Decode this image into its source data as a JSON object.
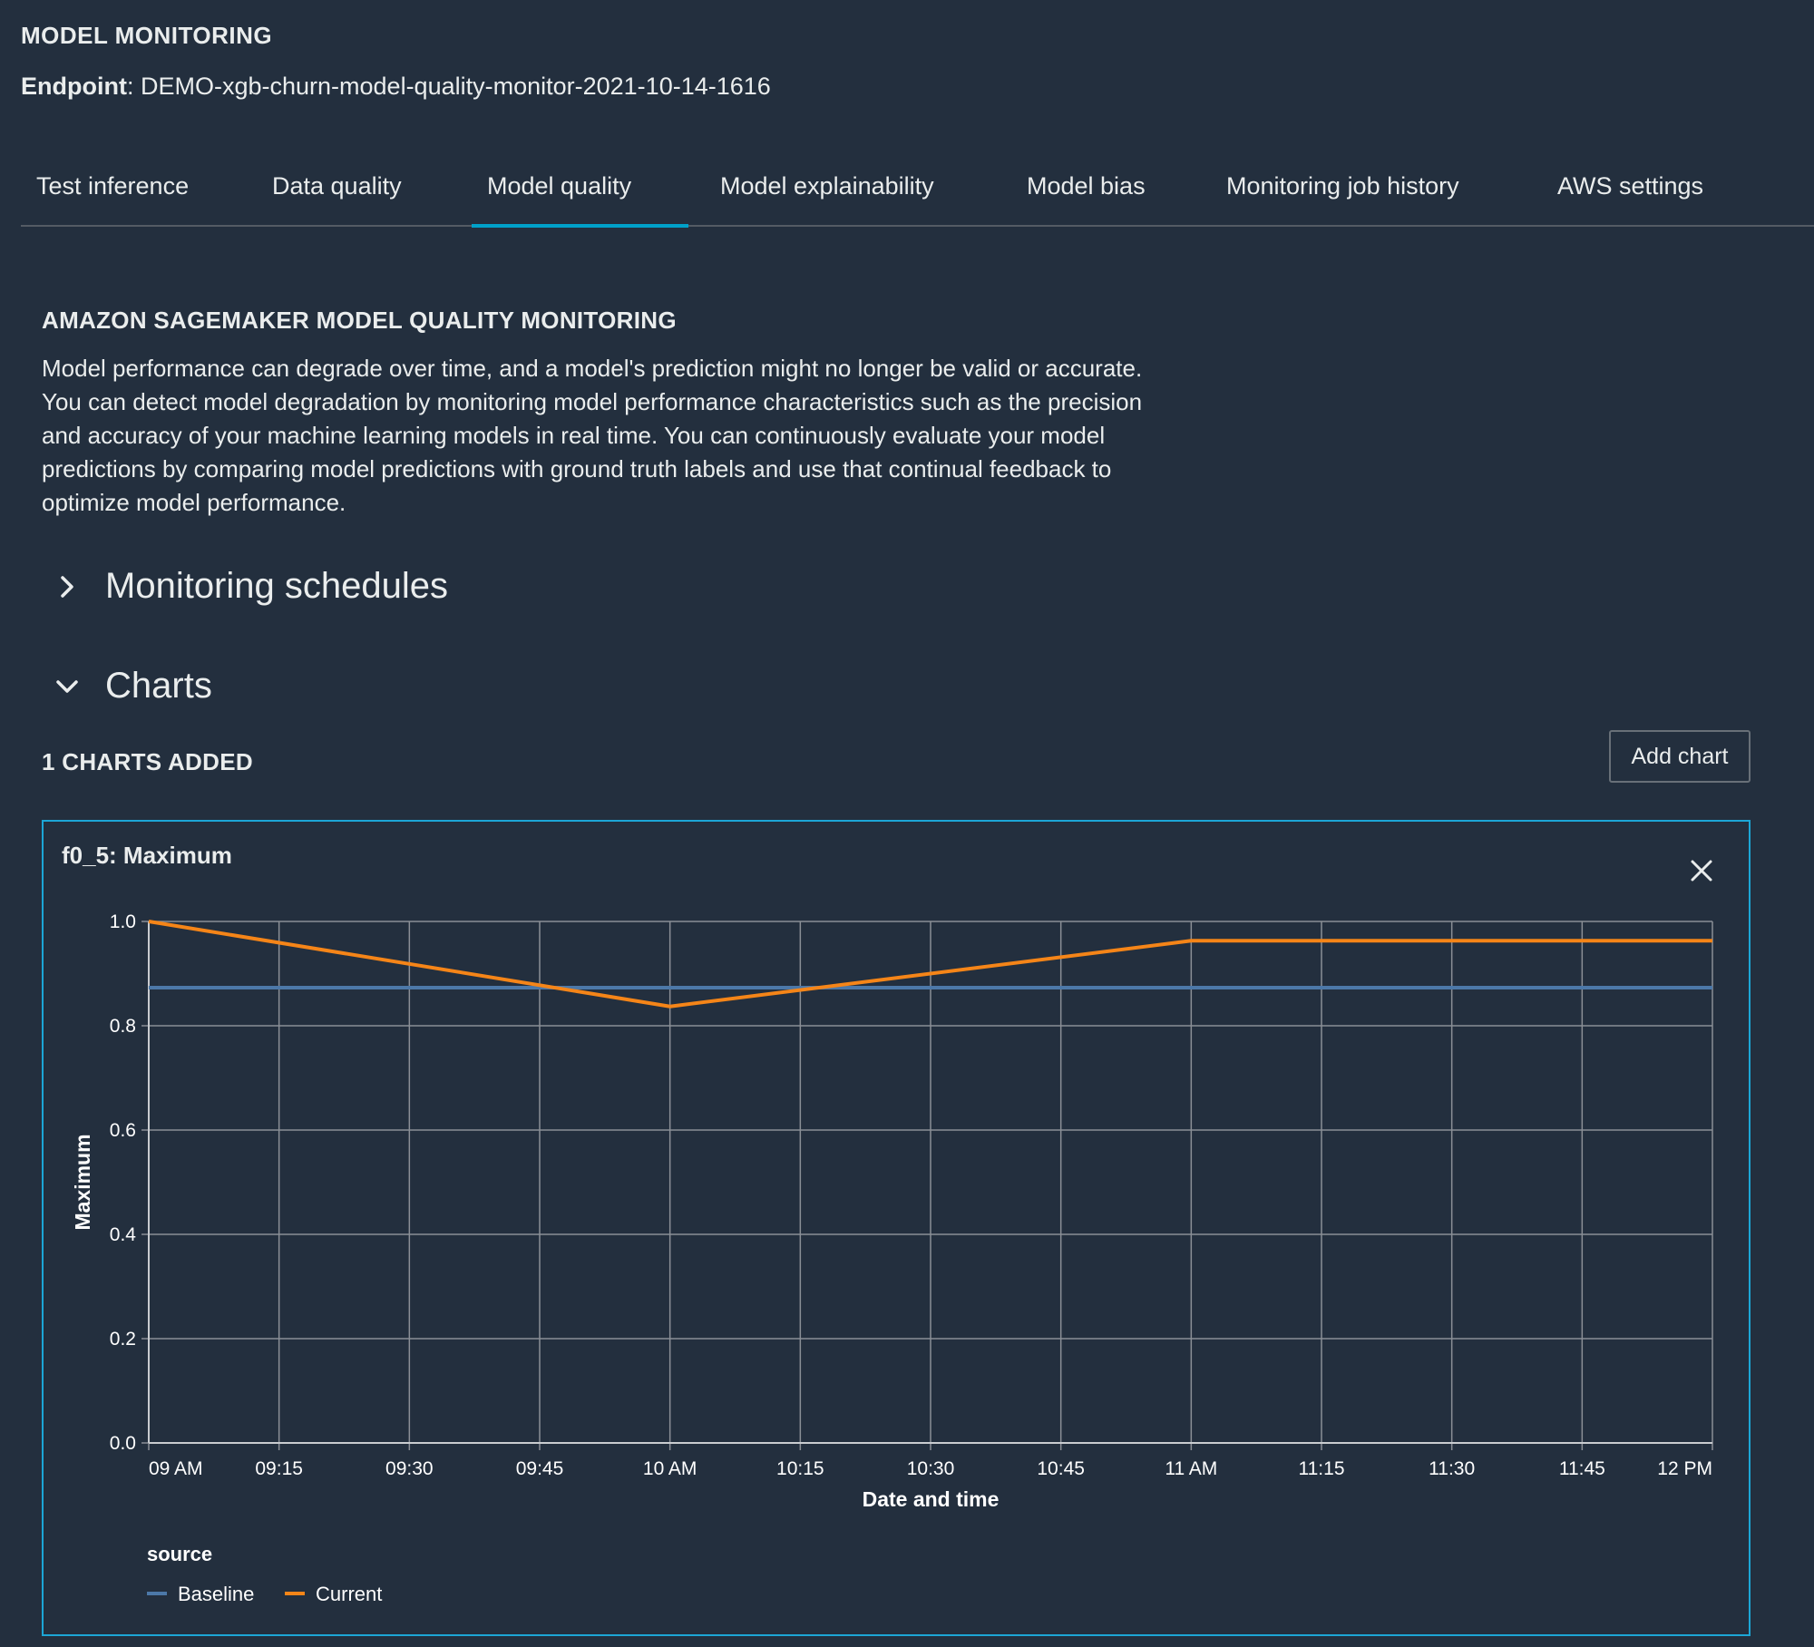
{
  "header": {
    "app_title": "MODEL MONITORING",
    "endpoint_label": "Endpoint",
    "endpoint_value": "DEMO-xgb-churn-model-quality-monitor-2021-10-14-1616"
  },
  "tabs": [
    {
      "label": "Test inference",
      "active": false
    },
    {
      "label": "Data quality",
      "active": false
    },
    {
      "label": "Model quality",
      "active": true
    },
    {
      "label": "Model explainability",
      "active": false
    },
    {
      "label": "Model bias",
      "active": false
    },
    {
      "label": "Monitoring job history",
      "active": false
    },
    {
      "label": "AWS settings",
      "active": false
    }
  ],
  "section": {
    "heading": "AMAZON SAGEMAKER MODEL QUALITY MONITORING",
    "description_lines": [
      "Model performance can degrade over time, and a model's prediction might no longer be valid or accurate.",
      "You can detect model degradation by monitoring model performance characteristics such as the precision",
      "and accuracy of your machine learning models in real time. You can continuously evaluate your model",
      "predictions by comparing model predictions with ground truth labels and use that continual feedback to",
      "optimize model performance."
    ]
  },
  "expanders": {
    "monitoring_schedules": {
      "label": "Monitoring schedules",
      "expanded": false,
      "icon": "chevron-right-icon"
    },
    "charts": {
      "label": "Charts",
      "expanded": true,
      "icon": "chevron-down-icon"
    }
  },
  "charts_panel": {
    "count_label": "1 CHARTS ADDED",
    "add_chart_label": "Add chart"
  },
  "colors": {
    "background": "#232f3e",
    "accent": "#00a1c9",
    "baseline": "#4c78a8",
    "current": "#f58518",
    "grid": "#8a8f96"
  },
  "chart_data": {
    "type": "line",
    "title": "f0_5: Maximum",
    "xlabel": "Date and time",
    "ylabel": "Maximum",
    "x_ticks": [
      "09 AM",
      "09:15",
      "09:30",
      "09:45",
      "10 AM",
      "10:15",
      "10:30",
      "10:45",
      "11 AM",
      "11:15",
      "11:30",
      "11:45",
      "12 PM"
    ],
    "y_ticks": [
      "0.0",
      "0.2",
      "0.4",
      "0.6",
      "0.8",
      "1.0"
    ],
    "xlim": [
      "09:00",
      "12:00"
    ],
    "ylim": [
      0,
      1
    ],
    "grid": true,
    "legend": {
      "title": "source",
      "placement": "bottom-left"
    },
    "series": [
      {
        "name": "Baseline",
        "color": "#4c78a8",
        "points": [
          {
            "x": "09:00",
            "y": 0.873
          },
          {
            "x": "12:00",
            "y": 0.873
          }
        ]
      },
      {
        "name": "Current",
        "color": "#f58518",
        "points": [
          {
            "x": "09:00",
            "y": 1.0
          },
          {
            "x": "10:00",
            "y": 0.837
          },
          {
            "x": "11:00",
            "y": 0.963
          },
          {
            "x": "12:00",
            "y": 0.963
          }
        ]
      }
    ]
  }
}
